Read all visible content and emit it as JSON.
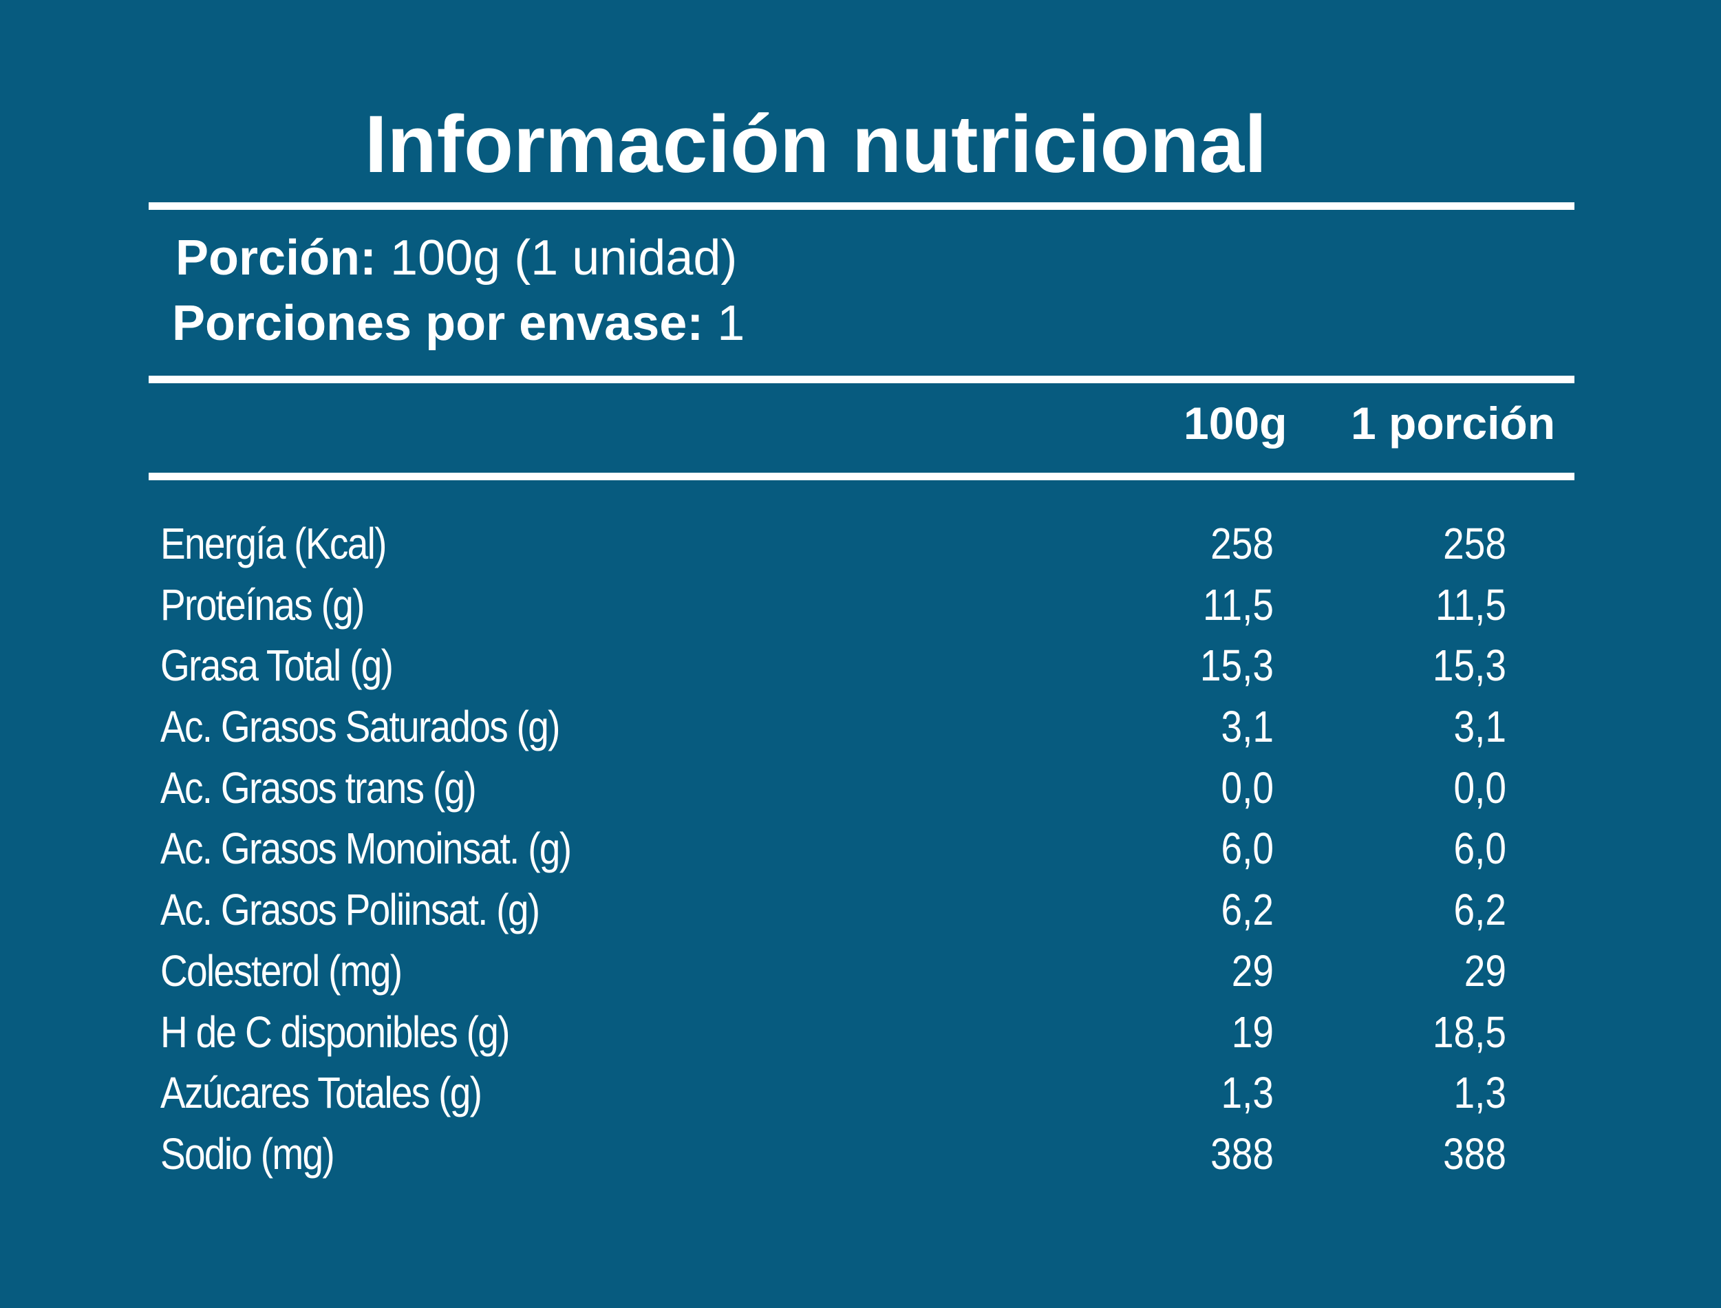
{
  "title": "Información nutricional",
  "serving": {
    "portion_label": "Porción:",
    "portion_value": " 100g (1 unidad)",
    "servings_label": "Porciones por envase:",
    "servings_value": " 1"
  },
  "columns": {
    "col1": "100g",
    "col2": "1 porción"
  },
  "rows": [
    {
      "name": "Energía (Kcal)",
      "v1": "258",
      "v2": "258"
    },
    {
      "name": "Proteínas (g)",
      "v1": "11,5",
      "v2": "11,5"
    },
    {
      "name": "Grasa Total (g)",
      "v1": "15,3",
      "v2": "15,3"
    },
    {
      "name": "Ac. Grasos Saturados (g)",
      "v1": "3,1",
      "v2": "3,1"
    },
    {
      "name": "Ac. Grasos trans (g)",
      "v1": "0,0",
      "v2": "0,0"
    },
    {
      "name": "Ac. Grasos Monoinsat. (g)",
      "v1": "6,0",
      "v2": "6,0"
    },
    {
      "name": "Ac. Grasos Poliinsat. (g)",
      "v1": "6,2",
      "v2": "6,2"
    },
    {
      "name": "Colesterol (mg)",
      "v1": "29",
      "v2": "29"
    },
    {
      "name": "H de C disponibles (g)",
      "v1": "19",
      "v2": "18,5"
    },
    {
      "name": "Azúcares Totales (g)",
      "v1": "1,3",
      "v2": "1,3"
    },
    {
      "name": "Sodio (mg)",
      "v1": "388",
      "v2": "388"
    }
  ],
  "colors": {
    "background": "#075b7f",
    "text": "#ffffff"
  }
}
